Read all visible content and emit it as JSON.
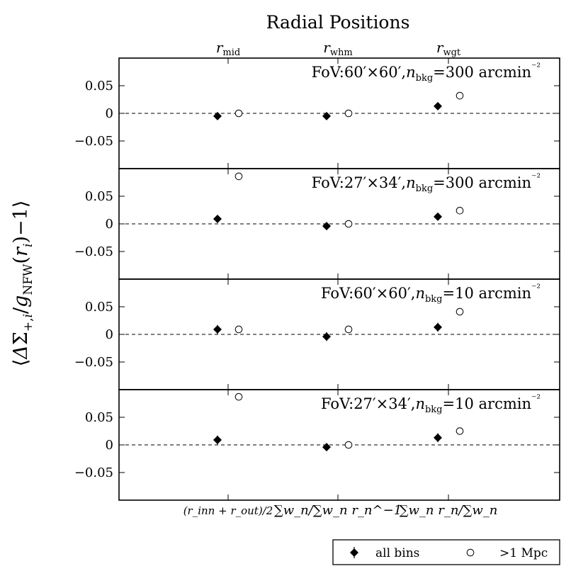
{
  "chart_data": {
    "type": "scatter",
    "title": "Radial Positions",
    "ylabel": "⟨ΔΣ₊,ᵢ/g_NFW(rᵢ)−1⟩",
    "ylim": [
      -0.1,
      0.1
    ],
    "yticks": [
      "0.05",
      "0",
      "−0.05"
    ],
    "top_tick_labels": [
      {
        "base": "r",
        "sub": "mid"
      },
      {
        "base": "r",
        "sub": "whm"
      },
      {
        "base": "r",
        "sub": "wgt"
      }
    ],
    "bottom_tick_labels": [
      "(r_inn + r_out)/2",
      "∑w_n/∑w_n r_n^−1",
      "∑w_n r_n/∑w_n"
    ],
    "legend": {
      "placement": "bottom-right",
      "entries": [
        {
          "label": "all bins",
          "marker": "filled-diamond"
        },
        {
          "label": ">1 Mpc",
          "marker": "open-circle"
        }
      ]
    },
    "panels": [
      {
        "label": {
          "fov": "FoV:60′×60′",
          "nbkg": "n_bkg=300 arcmin⁻²"
        },
        "series": [
          {
            "marker": "filled-diamond",
            "points": [
              [
                0,
                -0.005,
                0.003
              ],
              [
                1,
                -0.005,
                0.003
              ],
              [
                2,
                0.013,
                0.004
              ]
            ]
          },
          {
            "marker": "open-circle",
            "points": [
              [
                0,
                0.0,
                0
              ],
              [
                1,
                0.0,
                0
              ],
              [
                2,
                0.032,
                0
              ]
            ]
          }
        ]
      },
      {
        "label": {
          "fov": "FoV:27′×34′",
          "nbkg": "n_bkg=300 arcmin⁻²"
        },
        "series": [
          {
            "marker": "filled-diamond",
            "points": [
              [
                0,
                0.009,
                0.003
              ],
              [
                1,
                -0.004,
                0.003
              ],
              [
                2,
                0.013,
                0.004
              ]
            ]
          },
          {
            "marker": "open-circle",
            "points": [
              [
                0,
                0.086,
                0
              ],
              [
                1,
                0.0,
                0
              ],
              [
                2,
                0.024,
                0
              ]
            ]
          }
        ]
      },
      {
        "label": {
          "fov": "FoV:60′×60′",
          "nbkg": "n_bkg=10 arcmin⁻²"
        },
        "series": [
          {
            "marker": "filled-diamond",
            "points": [
              [
                0,
                0.009,
                0.008
              ],
              [
                1,
                -0.004,
                0.008
              ],
              [
                2,
                0.013,
                0.008
              ]
            ]
          },
          {
            "marker": "open-circle",
            "points": [
              [
                0,
                0.009,
                0
              ],
              [
                1,
                0.009,
                0
              ],
              [
                2,
                0.041,
                0
              ]
            ]
          }
        ]
      },
      {
        "label": {
          "fov": "FoV:27′×34′",
          "nbkg": "n_bkg=10 arcmin⁻²"
        },
        "series": [
          {
            "marker": "filled-diamond",
            "points": [
              [
                0,
                0.009,
                0.008
              ],
              [
                1,
                -0.004,
                0.007
              ],
              [
                2,
                0.013,
                0.008
              ]
            ]
          },
          {
            "marker": "open-circle",
            "points": [
              [
                0,
                0.087,
                0
              ],
              [
                1,
                0.0,
                0
              ],
              [
                2,
                0.025,
                0
              ]
            ]
          }
        ]
      }
    ]
  }
}
